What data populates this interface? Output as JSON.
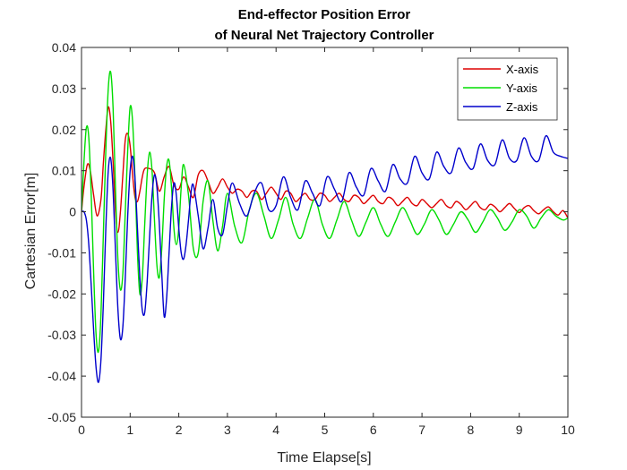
{
  "chart_data": {
    "type": "line",
    "title": [
      "End-effector Position Error",
      "of Neural Net Trajectory Controller"
    ],
    "xlabel": "Time Elapse[s]",
    "ylabel": "Cartesian Error[m]",
    "xlim": [
      0,
      10
    ],
    "ylim": [
      -0.05,
      0.04
    ],
    "xticks": [
      0,
      1,
      2,
      3,
      4,
      5,
      6,
      7,
      8,
      9,
      10
    ],
    "xtick_labels": [
      "0",
      "1",
      "2",
      "3",
      "4",
      "5",
      "6",
      "7",
      "8",
      "9",
      "10"
    ],
    "yticks": [
      -0.05,
      -0.04,
      -0.03,
      -0.02,
      -0.01,
      0,
      0.01,
      0.02,
      0.03,
      0.04
    ],
    "ytick_labels": [
      "-0.05",
      "-0.04",
      "-0.03",
      "-0.02",
      "-0.01",
      "0",
      "0.01",
      "0.02",
      "0.03",
      "0.04"
    ],
    "grid": false,
    "legend_position": "top-right",
    "series": [
      {
        "name": "X-axis",
        "color": "#dd0000",
        "x": [
          0,
          0.05,
          0.12,
          0.18,
          0.25,
          0.32,
          0.4,
          0.45,
          0.5,
          0.55,
          0.6,
          0.65,
          0.7,
          0.75,
          0.8,
          0.85,
          0.9,
          0.95,
          1.0,
          1.05,
          1.1,
          1.15,
          1.2,
          1.25,
          1.3,
          1.4,
          1.5,
          1.6,
          1.7,
          1.8,
          1.9,
          2.0,
          2.1,
          2.2,
          2.3,
          2.4,
          2.5,
          2.6,
          2.7,
          2.8,
          2.9,
          3.0,
          3.1,
          3.2,
          3.3,
          3.4,
          3.5,
          3.6,
          3.7,
          3.8,
          3.9,
          4.0,
          4.1,
          4.2,
          4.3,
          4.4,
          4.5,
          4.6,
          4.7,
          4.8,
          4.9,
          5.0,
          5.1,
          5.2,
          5.3,
          5.4,
          5.5,
          5.6,
          5.7,
          5.8,
          5.9,
          6.0,
          6.1,
          6.2,
          6.3,
          6.4,
          6.5,
          6.6,
          6.7,
          6.8,
          6.9,
          7.0,
          7.1,
          7.2,
          7.3,
          7.4,
          7.5,
          7.6,
          7.7,
          7.8,
          7.9,
          8.0,
          8.1,
          8.2,
          8.3,
          8.4,
          8.5,
          8.6,
          8.7,
          8.8,
          8.9,
          9.0,
          9.1,
          9.2,
          9.3,
          9.4,
          9.5,
          9.6,
          9.7,
          9.8,
          9.9,
          10.0
        ],
        "y": [
          0,
          0.006,
          0.0115,
          0.01,
          0.004,
          -0.001,
          0.003,
          0.012,
          0.02,
          0.0255,
          0.022,
          0.012,
          0.0,
          -0.005,
          0.0,
          0.009,
          0.0175,
          0.019,
          0.016,
          0.009,
          0.0035,
          0.0025,
          0.005,
          0.0085,
          0.0105,
          0.0105,
          0.0095,
          0.005,
          0.0085,
          0.011,
          0.0065,
          0.0055,
          0.0085,
          0.006,
          0.0035,
          0.009,
          0.01,
          0.0075,
          0.0045,
          0.006,
          0.008,
          0.006,
          0.0045,
          0.0055,
          0.005,
          0.0035,
          0.005,
          0.005,
          0.003,
          0.0045,
          0.006,
          0.0045,
          0.003,
          0.005,
          0.0045,
          0.0025,
          0.0035,
          0.0045,
          0.003,
          0.003,
          0.0045,
          0.004,
          0.0025,
          0.0035,
          0.0045,
          0.003,
          0.0025,
          0.004,
          0.0035,
          0.002,
          0.003,
          0.004,
          0.0025,
          0.002,
          0.0035,
          0.003,
          0.0015,
          0.0025,
          0.0035,
          0.002,
          0.0015,
          0.003,
          0.002,
          0.001,
          0.002,
          0.003,
          0.0015,
          0.001,
          0.0025,
          0.0018,
          0.0005,
          0.0015,
          0.0025,
          0.001,
          0.0005,
          0.0018,
          0.0012,
          0.0,
          0.001,
          0.002,
          0.0008,
          -0.0002,
          0.001,
          0.0015,
          0.0003,
          -0.0005,
          0.0005,
          0.0012,
          0.0,
          -0.0008,
          0.0003,
          -0.0015
        ]
      },
      {
        "name": "Y-axis",
        "color": "#00dd00",
        "x": [
          0,
          0.05,
          0.1,
          0.15,
          0.2,
          0.25,
          0.3,
          0.35,
          0.4,
          0.45,
          0.5,
          0.55,
          0.6,
          0.65,
          0.7,
          0.75,
          0.8,
          0.85,
          0.9,
          0.95,
          1.0,
          1.05,
          1.1,
          1.15,
          1.2,
          1.25,
          1.3,
          1.35,
          1.4,
          1.45,
          1.5,
          1.55,
          1.6,
          1.65,
          1.7,
          1.75,
          1.8,
          1.85,
          1.9,
          1.95,
          2.0,
          2.05,
          2.1,
          2.2,
          2.3,
          2.4,
          2.5,
          2.6,
          2.7,
          2.8,
          2.9,
          3.0,
          3.15,
          3.3,
          3.45,
          3.6,
          3.75,
          3.9,
          4.05,
          4.2,
          4.35,
          4.5,
          4.65,
          4.8,
          4.95,
          5.1,
          5.25,
          5.4,
          5.55,
          5.7,
          5.85,
          6.0,
          6.15,
          6.3,
          6.45,
          6.6,
          6.75,
          6.9,
          7.05,
          7.2,
          7.35,
          7.5,
          7.65,
          7.8,
          7.95,
          8.1,
          8.25,
          8.4,
          8.55,
          8.7,
          8.85,
          9.0,
          9.15,
          9.3,
          9.45,
          9.6,
          9.75,
          9.9,
          10.0
        ],
        "y": [
          0,
          0.012,
          0.0205,
          0.018,
          0.004,
          -0.015,
          -0.03,
          -0.034,
          -0.025,
          -0.005,
          0.015,
          0.03,
          0.034,
          0.025,
          0.005,
          -0.012,
          -0.019,
          -0.015,
          0.0,
          0.015,
          0.0255,
          0.022,
          0.008,
          -0.01,
          -0.02,
          -0.016,
          -0.003,
          0.009,
          0.0145,
          0.01,
          -0.002,
          -0.013,
          -0.016,
          -0.009,
          0.003,
          0.011,
          0.0125,
          0.006,
          -0.004,
          -0.008,
          -0.004,
          0.006,
          0.0115,
          0.004,
          -0.009,
          -0.01,
          0.0025,
          0.0075,
          -0.002,
          -0.0095,
          -0.0035,
          0.0045,
          -0.0035,
          -0.0075,
          0.0005,
          0.0045,
          -0.001,
          -0.0065,
          -0.002,
          0.0035,
          -0.003,
          -0.0065,
          -0.0015,
          0.003,
          -0.003,
          -0.0065,
          -0.002,
          0.0025,
          -0.002,
          -0.006,
          -0.0025,
          0.001,
          -0.003,
          -0.006,
          -0.0025,
          0.001,
          -0.002,
          -0.0055,
          -0.003,
          0.0005,
          -0.002,
          -0.0055,
          -0.003,
          0.0,
          -0.002,
          -0.005,
          -0.0025,
          0.0005,
          -0.0015,
          -0.0045,
          -0.0025,
          0.0005,
          -0.001,
          -0.004,
          -0.0015,
          0.0005,
          -0.001,
          -0.002,
          -0.0015
        ]
      },
      {
        "name": "Z-axis",
        "color": "#0000cc",
        "x": [
          0,
          0.05,
          0.1,
          0.15,
          0.2,
          0.25,
          0.3,
          0.35,
          0.4,
          0.45,
          0.5,
          0.55,
          0.6,
          0.65,
          0.7,
          0.75,
          0.8,
          0.85,
          0.9,
          0.95,
          1.0,
          1.05,
          1.1,
          1.15,
          1.2,
          1.25,
          1.3,
          1.35,
          1.4,
          1.45,
          1.5,
          1.55,
          1.6,
          1.65,
          1.7,
          1.75,
          1.8,
          1.85,
          1.9,
          1.95,
          2.0,
          2.05,
          2.1,
          2.15,
          2.2,
          2.25,
          2.3,
          2.4,
          2.5,
          2.6,
          2.7,
          2.8,
          2.9,
          3.0,
          3.1,
          3.25,
          3.4,
          3.55,
          3.7,
          3.85,
          4.0,
          4.15,
          4.3,
          4.45,
          4.6,
          4.75,
          4.9,
          5.05,
          5.2,
          5.35,
          5.5,
          5.65,
          5.8,
          5.95,
          6.1,
          6.25,
          6.4,
          6.55,
          6.7,
          6.85,
          7.0,
          7.15,
          7.3,
          7.45,
          7.6,
          7.75,
          7.9,
          8.05,
          8.2,
          8.35,
          8.5,
          8.65,
          8.8,
          8.95,
          9.1,
          9.25,
          9.4,
          9.55,
          9.7,
          9.85,
          10.0
        ],
        "y": [
          0,
          0.0,
          -0.002,
          -0.008,
          -0.018,
          -0.029,
          -0.038,
          -0.0415,
          -0.036,
          -0.022,
          -0.004,
          0.01,
          0.013,
          0.005,
          -0.01,
          -0.024,
          -0.031,
          -0.028,
          -0.016,
          -0.001,
          0.01,
          0.0135,
          0.008,
          -0.004,
          -0.016,
          -0.024,
          -0.0245,
          -0.017,
          -0.006,
          0.004,
          0.009,
          0.006,
          -0.003,
          -0.015,
          -0.0255,
          -0.021,
          -0.01,
          0.001,
          0.007,
          0.004,
          -0.004,
          -0.01,
          -0.0115,
          -0.008,
          -0.002,
          0.0045,
          0.0065,
          -0.001,
          -0.009,
          -0.004,
          0.003,
          -0.004,
          -0.0055,
          0.0015,
          0.007,
          0.002,
          -0.001,
          0.0045,
          0.007,
          0.0005,
          0.0015,
          0.0085,
          0.0035,
          0.0005,
          0.0075,
          0.0045,
          0.0015,
          0.0085,
          0.0055,
          0.0025,
          0.0095,
          0.006,
          0.004,
          0.0105,
          0.0075,
          0.005,
          0.0115,
          0.008,
          0.007,
          0.0135,
          0.0095,
          0.008,
          0.0145,
          0.011,
          0.0095,
          0.0155,
          0.012,
          0.0105,
          0.0165,
          0.0125,
          0.0115,
          0.0175,
          0.013,
          0.0125,
          0.018,
          0.0135,
          0.0125,
          0.0185,
          0.0145,
          0.0135,
          0.013
        ]
      }
    ]
  }
}
